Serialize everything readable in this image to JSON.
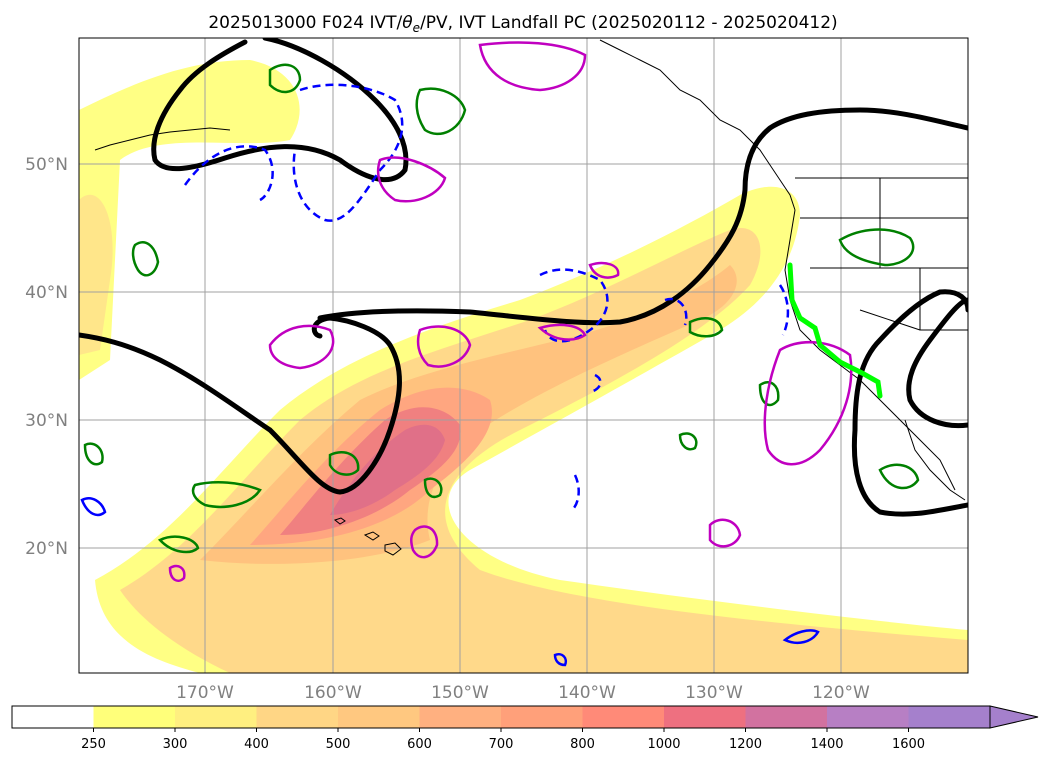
{
  "title": {
    "prefix": "2025013000 F024 IVT/",
    "theta": "θ",
    "theta_sub": "e",
    "suffix": "/PV, IVT Landfall PC (2025020112 - 2025020412)"
  },
  "map": {
    "latitude_labels": [
      "50°N",
      "40°N",
      "30°N",
      "20°N"
    ],
    "longitude_labels": [
      "170°W",
      "160°W",
      "150°W",
      "140°W",
      "130°W",
      "120°W"
    ],
    "gridlines": true,
    "colors": {
      "geopotential_contour": "#000000",
      "theta_e_positive": "#008000",
      "theta_e_negative": "#0000ff",
      "pv_contour": "#c000c0",
      "landfall_pc": "#00ff00",
      "coastline": "#000000",
      "gridline": "#a0a0a0"
    }
  },
  "colorbar": {
    "labels": [
      "250",
      "300",
      "400",
      "500",
      "600",
      "700",
      "800",
      "1000",
      "1200",
      "1400",
      "1600"
    ],
    "colors": [
      "#ffffff",
      "#ffff7a",
      "#ffef80",
      "#ffd685",
      "#ffc880",
      "#ffb080",
      "#ffa07a",
      "#ff8a78",
      "#ee7080",
      "#d272a0",
      "#b77fc4",
      "#a580cc"
    ],
    "extend": "max"
  }
}
